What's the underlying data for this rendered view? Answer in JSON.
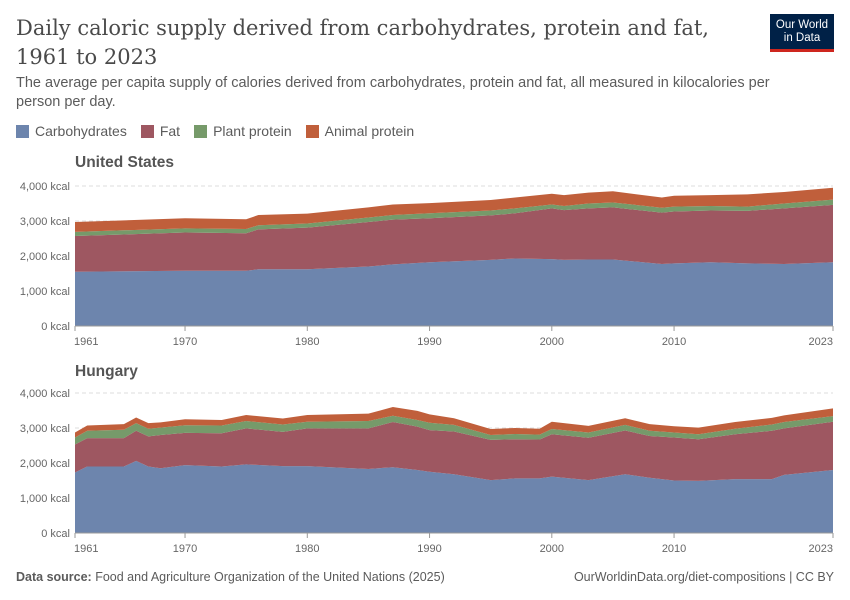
{
  "header": {
    "title": "Daily caloric supply derived from carbohydrates, protein and fat, 1961 to 2023",
    "subtitle": "The average per capita supply of calories derived from carbohydrates, protein and fat, all measured in kilocalories per person per day.",
    "logo": "Our World in Data"
  },
  "footer": {
    "source_label": "Data source:",
    "source": "Food and Agriculture Organization of the United Nations (2025)",
    "url": "OurWorldinData.org/diet-compositions | CC BY"
  },
  "chart_data": {
    "type": "area",
    "stacked": true,
    "legend": {
      "placement": "top-left",
      "entries": [
        "Carbohydrates",
        "Fat",
        "Plant protein",
        "Animal protein"
      ]
    },
    "colors": {
      "Carbohydrates": "#6d85ad",
      "Fat": "#9e5761",
      "Plant protein": "#769a6a",
      "Animal protein": "#c05f3b"
    },
    "ylim": [
      0,
      4000
    ],
    "yticks": [
      0,
      1000,
      2000,
      3000,
      4000
    ],
    "ytick_labels": [
      "0 kcal",
      "1,000 kcal",
      "2,000 kcal",
      "3,000 kcal",
      "4,000 kcal"
    ],
    "xlim": [
      1961,
      2023
    ],
    "xticks": [
      1961,
      1970,
      1980,
      1990,
      2000,
      2010,
      2023
    ],
    "xtick_labels": [
      "1961",
      "1970",
      "1980",
      "1990",
      "2000",
      "2010",
      "2023"
    ],
    "grid": "horizontal-dashed",
    "facets": [
      {
        "name": "United States",
        "series": {
          "x": [
            1961,
            1970,
            1975,
            1976,
            1980,
            1985,
            1987,
            1990,
            1995,
            1997,
            2000,
            2001,
            2003,
            2005,
            2009,
            2010,
            2013,
            2016,
            2019,
            2023
          ],
          "Carbohydrates": [
            1550,
            1580,
            1580,
            1620,
            1620,
            1700,
            1760,
            1820,
            1890,
            1930,
            1910,
            1890,
            1900,
            1900,
            1770,
            1790,
            1820,
            1790,
            1770,
            1820
          ],
          "Fat": [
            1020,
            1090,
            1070,
            1140,
            1190,
            1270,
            1280,
            1260,
            1270,
            1290,
            1450,
            1420,
            1460,
            1490,
            1470,
            1480,
            1480,
            1500,
            1590,
            1640
          ],
          "Plant protein": [
            120,
            120,
            120,
            120,
            120,
            130,
            130,
            140,
            140,
            140,
            110,
            120,
            140,
            140,
            140,
            140,
            130,
            120,
            140,
            150
          ],
          "Animal protein": [
            280,
            290,
            280,
            290,
            280,
            290,
            300,
            290,
            300,
            310,
            310,
            310,
            310,
            320,
            290,
            310,
            310,
            350,
            330,
            340
          ]
        }
      },
      {
        "name": "Hungary",
        "series": {
          "x": [
            1961,
            1962,
            1965,
            1966,
            1967,
            1968,
            1970,
            1973,
            1975,
            1978,
            1980,
            1985,
            1987,
            1989,
            1990,
            1992,
            1995,
            1997,
            1999,
            2000,
            2003,
            2006,
            2008,
            2010,
            2012,
            2015,
            2018,
            2019,
            2023
          ],
          "Carbohydrates": [
            1730,
            1900,
            1900,
            2060,
            1900,
            1850,
            1940,
            1900,
            1960,
            1910,
            1910,
            1830,
            1880,
            1800,
            1750,
            1680,
            1510,
            1560,
            1560,
            1610,
            1510,
            1680,
            1580,
            1500,
            1490,
            1540,
            1540,
            1660,
            1800
          ],
          "Fat": [
            800,
            810,
            810,
            860,
            860,
            950,
            920,
            950,
            1030,
            980,
            1080,
            1160,
            1290,
            1240,
            1190,
            1220,
            1150,
            1120,
            1110,
            1210,
            1210,
            1250,
            1190,
            1230,
            1190,
            1280,
            1380,
            1330,
            1380
          ],
          "Plant protein": [
            200,
            210,
            240,
            220,
            220,
            210,
            220,
            220,
            210,
            210,
            190,
            210,
            180,
            190,
            210,
            190,
            140,
            150,
            140,
            150,
            150,
            160,
            150,
            140,
            140,
            160,
            180,
            180,
            160
          ],
          "Animal protein": [
            140,
            150,
            160,
            160,
            160,
            150,
            170,
            160,
            170,
            170,
            190,
            210,
            250,
            260,
            240,
            190,
            170,
            170,
            170,
            210,
            190,
            190,
            190,
            180,
            190,
            190,
            190,
            190,
            220
          ]
        }
      }
    ]
  }
}
